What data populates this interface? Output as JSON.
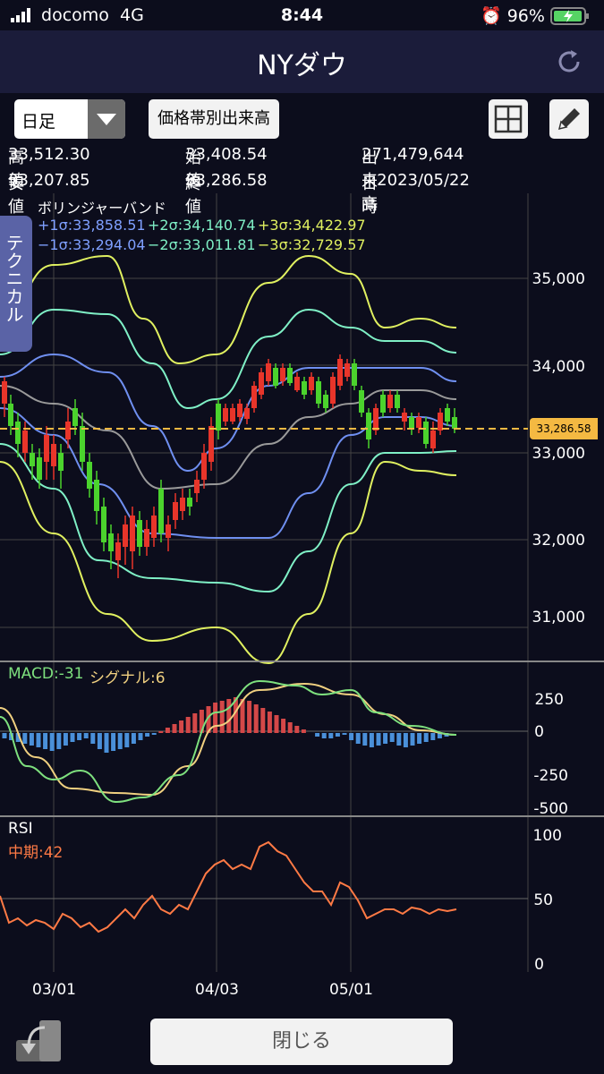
{
  "status_bar": {
    "carrier": "docomo",
    "network": "4G",
    "time": "8:44",
    "battery": "96%"
  },
  "header": {
    "title": "NYダウ",
    "refresh_icon": "refresh-icon"
  },
  "toolbar": {
    "period_selected": "日足",
    "volume_by_price_label": "価格帯別出来高",
    "layout_icon": "grid-icon",
    "draw_icon": "pencil-icon"
  },
  "quote": {
    "high_label": "高値",
    "high": "33,512.30",
    "open_label": "始値",
    "open": "33,408.54",
    "volume_label": "出来高",
    "volume": "271,479,644",
    "low_label": "安値",
    "low": "33,207.85",
    "close_label": "終値",
    "close": "33,286.58",
    "date_label": "日時",
    "date": "2023/05/22"
  },
  "side_tab": {
    "label": "テクニカル"
  },
  "bollinger": {
    "title": "ボリンジャーバンド",
    "plus1": "+1σ:33,858.51",
    "plus2": "+2σ:34,140.74",
    "plus3": "+3σ:34,422.97",
    "minus1": "−1σ:33,294.04",
    "minus2": "−2σ:33,011.81",
    "minus3": "−3σ:32,729.57"
  },
  "price_axis": [
    "35,000",
    "34,000",
    "33,000",
    "32,000",
    "31,000"
  ],
  "current_price_tag": "33,286.58",
  "macd": {
    "label": "MACD:-31",
    "signal_label": "シグナル:6",
    "axis": [
      "250",
      "0",
      "-250",
      "-500"
    ]
  },
  "rsi": {
    "title": "RSI",
    "label": "中期:42",
    "axis": [
      "100",
      "50",
      "0"
    ]
  },
  "x_axis": [
    "03/01",
    "04/03",
    "05/01"
  ],
  "footer": {
    "close_label": "閉じる",
    "back_icon": "back-icon"
  },
  "colors": {
    "up": "#e8352a",
    "down": "#4bd32d",
    "plus1": "#6f8ff0",
    "plus2": "#7ff0c6",
    "plus3": "#e0f060",
    "middle": "#9a9a9a",
    "macd_line": "#7ee07e",
    "signal_line": "#f0d080",
    "macd_pos": "#d44848",
    "macd_neg": "#4a90d9",
    "rsi_line": "#ff7a45",
    "price_tag": "#f4b942"
  }
}
